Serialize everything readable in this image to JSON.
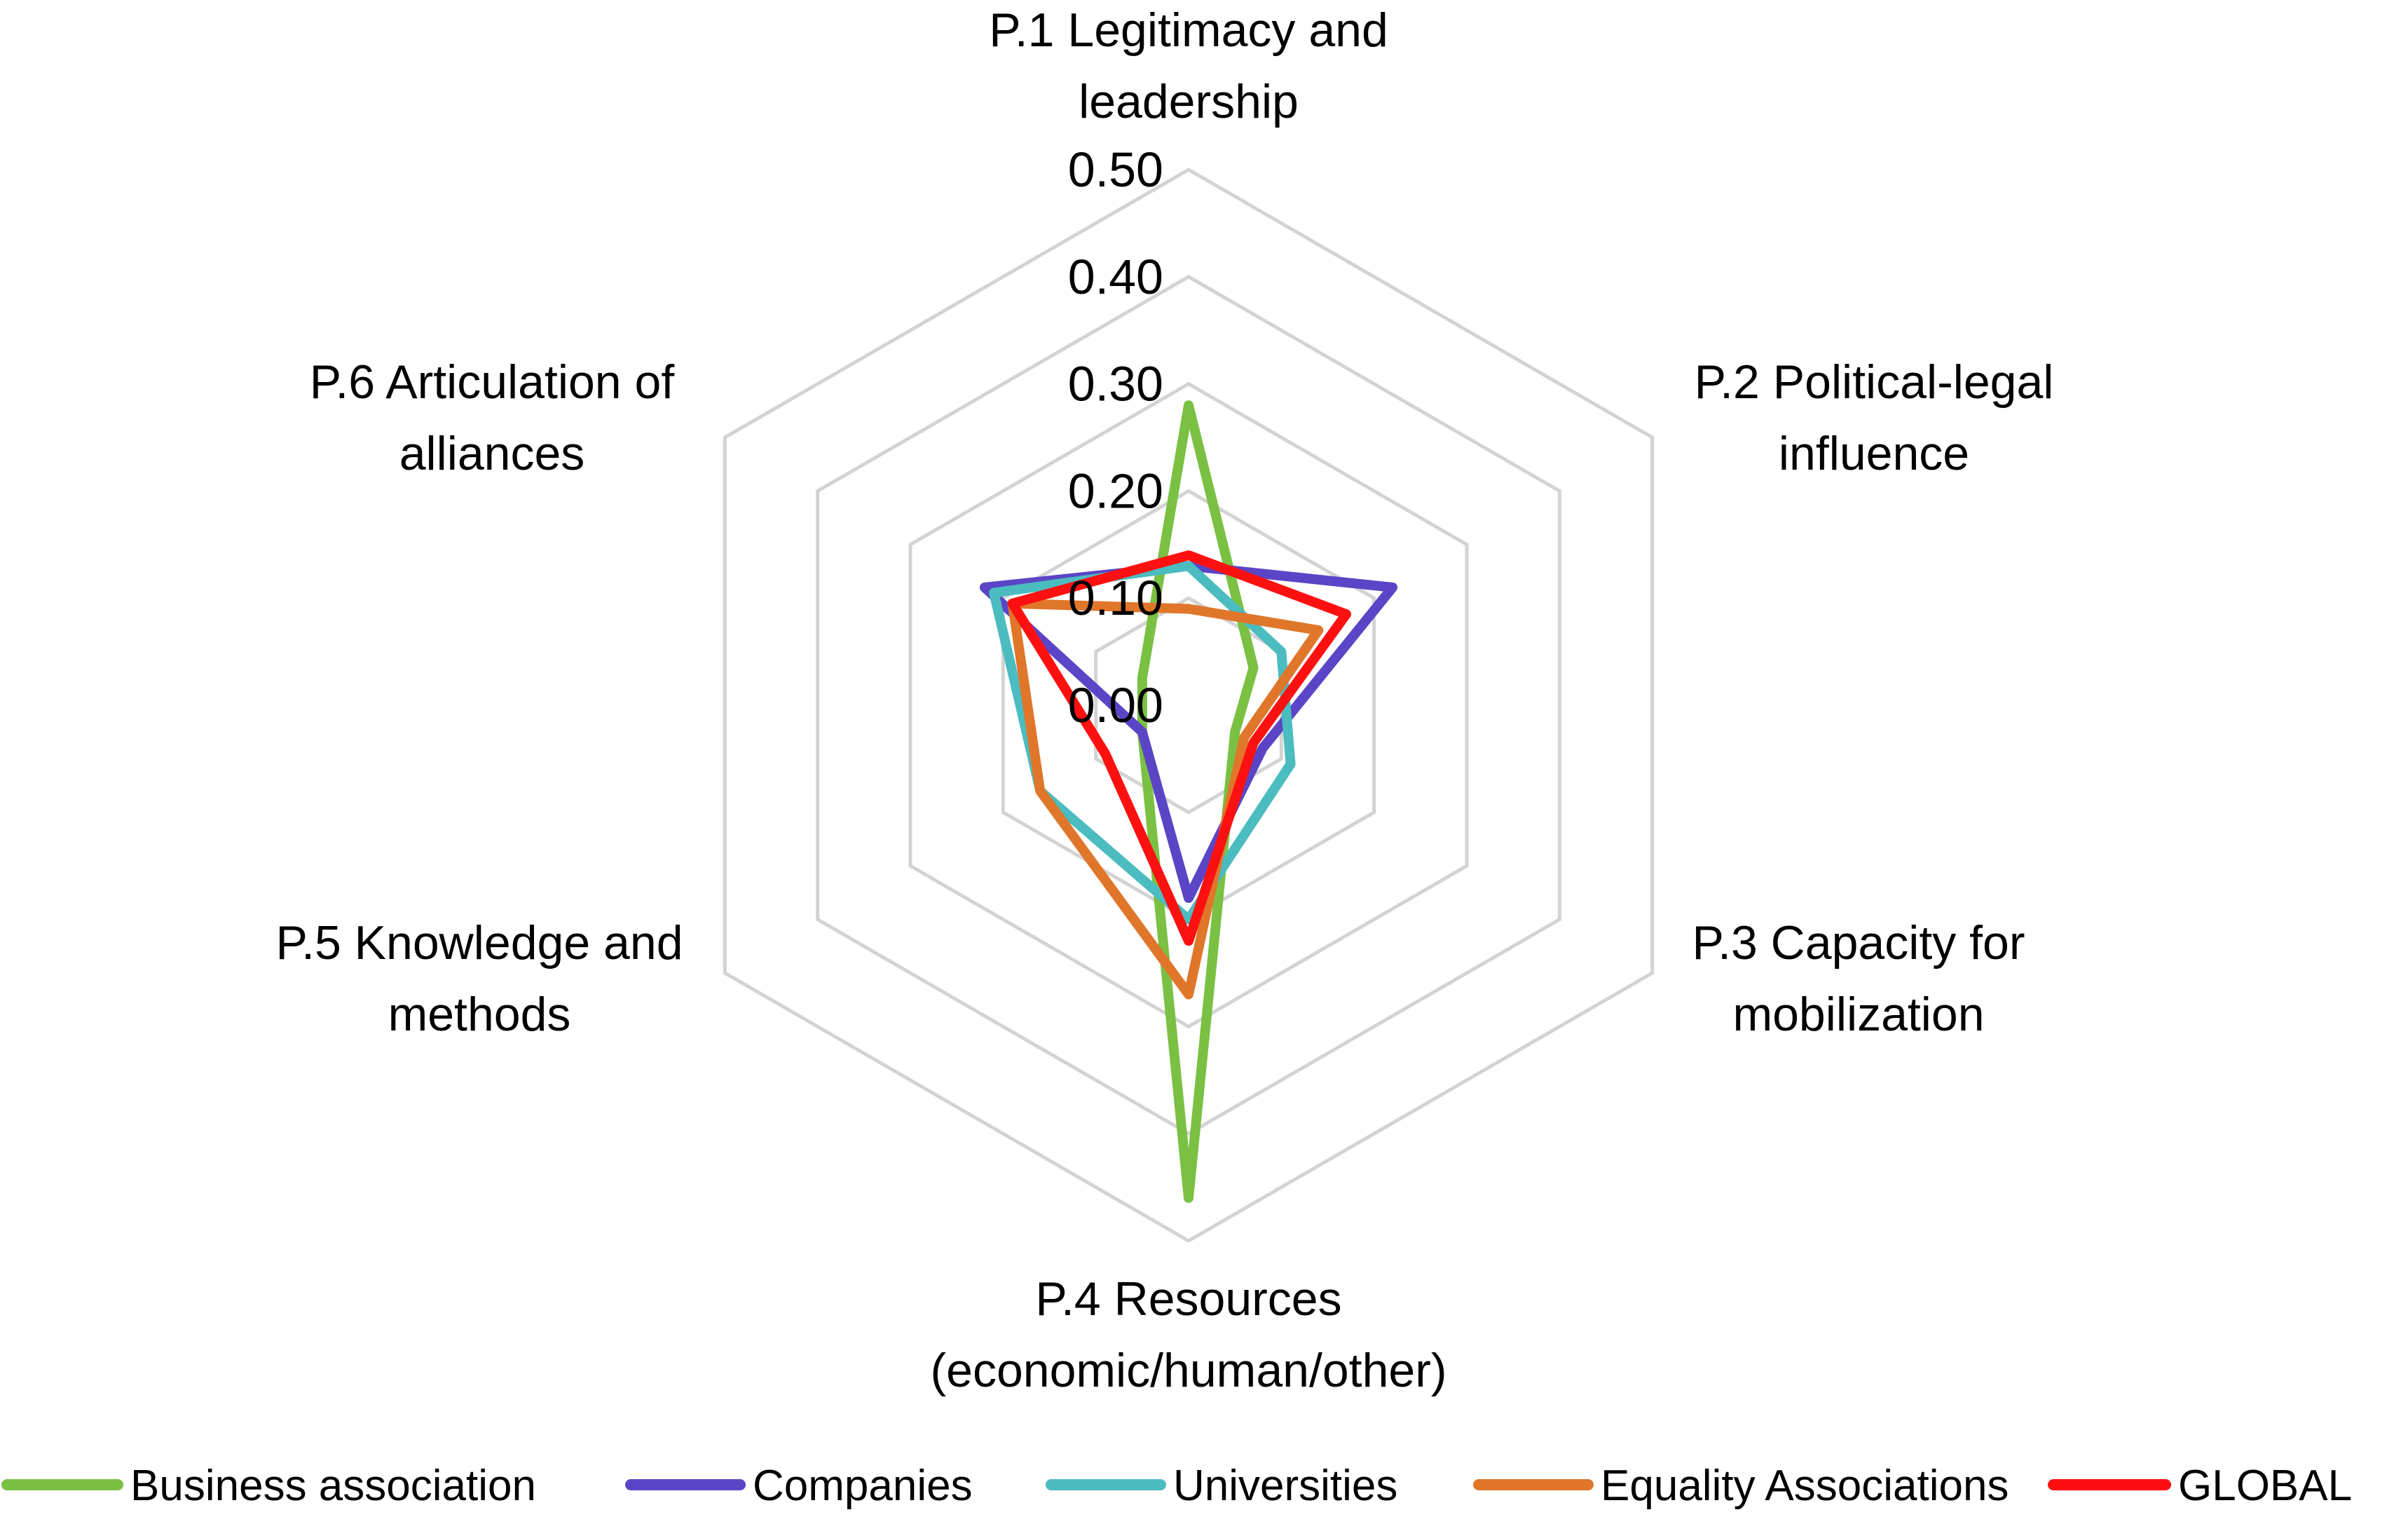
{
  "chart_data": {
    "type": "radar",
    "title": "",
    "categories": [
      [
        "P.1 Legitimacy and",
        "leadership"
      ],
      [
        "P.2 Political-legal",
        "influence"
      ],
      [
        "P.3 Capacity for",
        "mobilization"
      ],
      [
        "P.4 Resources",
        "(economic/human/other)"
      ],
      [
        "P.5 Knowledge and",
        "methods"
      ],
      [
        "P.6 Articulation of",
        "alliances"
      ]
    ],
    "r_ticks": [
      "0.00",
      "0.10",
      "0.20",
      "0.30",
      "0.40",
      "0.50"
    ],
    "r_range": [
      0,
      0.5
    ],
    "grid": true,
    "legend_position": "bottom",
    "series": [
      {
        "name": "Business association",
        "color": "#7ac143",
        "values": [
          0.28,
          0.07,
          0.05,
          0.46,
          0.05,
          0.05
        ]
      },
      {
        "name": "Companies",
        "color": "#5b45c6",
        "values": [
          0.13,
          0.22,
          0.08,
          0.18,
          0.05,
          0.22
        ]
      },
      {
        "name": "Universities",
        "color": "#4bbcc0",
        "values": [
          0.13,
          0.1,
          0.11,
          0.2,
          0.16,
          0.21
        ]
      },
      {
        "name": "Equality Associations",
        "color": "#e0762a",
        "values": [
          0.09,
          0.14,
          0.06,
          0.27,
          0.16,
          0.19
        ]
      },
      {
        "name": "GLOBAL",
        "color": "#ff1010",
        "values": [
          0.14,
          0.17,
          0.07,
          0.22,
          0.09,
          0.19
        ]
      }
    ]
  }
}
